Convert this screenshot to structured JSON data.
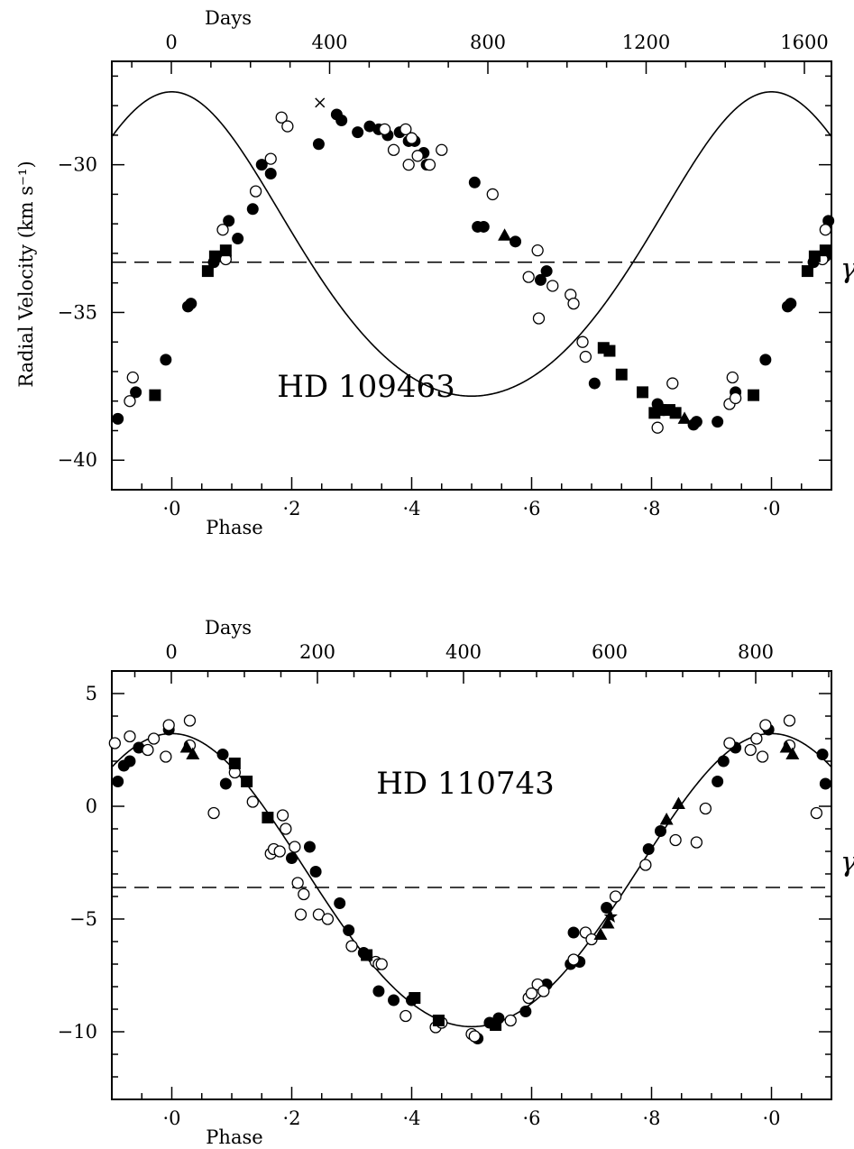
{
  "chart_data": [
    {
      "type": "scatter",
      "title": "HD 109463",
      "xlabel": "Phase",
      "x2label": "Days",
      "ylabel": "Radial Velocity (km s⁻¹)",
      "gamma_label": "γ",
      "xlim": [
        -0.1,
        1.1
      ],
      "ylim": [
        -41,
        -26.5
      ],
      "gamma": -33.3,
      "phase_ticks": [
        {
          "v": 0.0,
          "label": "·0"
        },
        {
          "v": 0.2,
          "label": "·2"
        },
        {
          "v": 0.4,
          "label": "·4"
        },
        {
          "v": 0.6,
          "label": "·6"
        },
        {
          "v": 0.8,
          "label": "·8"
        },
        {
          "v": 1.0,
          "label": "·0"
        }
      ],
      "y_ticks": [
        {
          "v": -30,
          "label": "−30"
        },
        {
          "v": -35,
          "label": "−35"
        },
        {
          "v": -40,
          "label": "−40"
        }
      ],
      "day_ticks": [
        {
          "v": 0,
          "label": "0"
        },
        {
          "v": 400,
          "label": "400"
        },
        {
          "v": 800,
          "label": "800"
        },
        {
          "v": 1200,
          "label": "1200"
        },
        {
          "v": 1600,
          "label": "1600"
        }
      ],
      "curve": {
        "gamma": -33.3,
        "K": 5.15,
        "e": 0.12,
        "omega_deg": 0,
        "T0": 0.0
      },
      "series": [
        {
          "marker": "filled-circle",
          "x": [
            -0.09,
            -0.06,
            -0.01,
            0.027,
            0.032,
            0.07,
            0.09,
            0.095,
            0.11,
            0.135,
            0.15,
            0.165,
            0.245,
            0.275,
            0.283,
            0.31,
            0.33,
            0.345,
            0.36,
            0.38,
            0.395,
            0.405,
            0.42,
            0.425,
            0.505,
            0.51,
            0.52,
            0.573,
            0.615,
            0.625,
            0.705,
            0.81,
            0.815,
            0.87,
            0.875,
            0.91,
            0.94,
            0.99,
            1.027,
            1.032,
            1.07,
            1.09,
            1.095
          ],
          "y": [
            -38.6,
            -37.7,
            -36.6,
            -34.8,
            -34.7,
            -33.3,
            -33.1,
            -31.9,
            -32.5,
            -31.5,
            -30.0,
            -30.3,
            -29.3,
            -28.3,
            -28.5,
            -28.9,
            -28.7,
            -28.8,
            -29.0,
            -28.9,
            -29.2,
            -29.2,
            -29.6,
            -30.0,
            -30.6,
            -32.1,
            -32.1,
            -32.6,
            -33.9,
            -33.6,
            -37.4,
            -38.1,
            -38.3,
            -38.8,
            -38.7,
            -38.7,
            -37.7,
            -36.6,
            -34.8,
            -34.7,
            -33.3,
            -33.1,
            -31.9
          ]
        },
        {
          "marker": "open-circle",
          "x": [
            -0.07,
            -0.065,
            0.085,
            0.09,
            0.14,
            0.165,
            0.183,
            0.193,
            0.355,
            0.37,
            0.39,
            0.395,
            0.4,
            0.41,
            0.43,
            0.45,
            0.535,
            0.595,
            0.61,
            0.612,
            0.635,
            0.665,
            0.67,
            0.685,
            0.69,
            0.81,
            0.82,
            0.835,
            0.93,
            0.935,
            0.94,
            1.085,
            1.09
          ],
          "y": [
            -38.0,
            -37.2,
            -32.2,
            -33.2,
            -30.9,
            -29.8,
            -28.4,
            -28.7,
            -28.8,
            -29.5,
            -28.8,
            -30.0,
            -29.1,
            -29.7,
            -30.0,
            -29.5,
            -31.0,
            -33.8,
            -32.9,
            -35.2,
            -34.1,
            -34.4,
            -34.7,
            -36.0,
            -36.5,
            -38.9,
            -38.3,
            -37.4,
            -38.1,
            -37.2,
            -37.9,
            -33.2,
            -32.2
          ]
        },
        {
          "marker": "filled-square",
          "x": [
            -0.028,
            0.06,
            0.072,
            0.09,
            0.72,
            0.73,
            0.75,
            0.785,
            0.805,
            0.815,
            0.83,
            0.84,
            0.97,
            1.06,
            1.072,
            1.09
          ],
          "y": [
            -37.8,
            -33.6,
            -33.1,
            -32.9,
            -36.2,
            -36.3,
            -37.1,
            -37.7,
            -38.4,
            -38.3,
            -38.3,
            -38.4,
            -37.8,
            -33.6,
            -33.1,
            -32.9
          ]
        },
        {
          "marker": "filled-triangle",
          "x": [
            0.555,
            0.855
          ],
          "y": [
            -32.4,
            -38.6
          ]
        },
        {
          "marker": "cross",
          "x": [
            0.247
          ],
          "y": [
            -27.9
          ]
        }
      ]
    },
    {
      "type": "scatter",
      "title": "HD 110743",
      "xlabel": "Phase",
      "x2label": "Days",
      "ylabel": "",
      "gamma_label": "γ",
      "xlim": [
        -0.1,
        1.1
      ],
      "ylim": [
        -13,
        6
      ],
      "gamma": -3.6,
      "phase_ticks": [
        {
          "v": 0.0,
          "label": "·0"
        },
        {
          "v": 0.2,
          "label": "·2"
        },
        {
          "v": 0.4,
          "label": "·4"
        },
        {
          "v": 0.6,
          "label": "·6"
        },
        {
          "v": 0.8,
          "label": "·8"
        },
        {
          "v": 1.0,
          "label": "·0"
        }
      ],
      "y_ticks": [
        {
          "v": 5,
          "label": "5"
        },
        {
          "v": 0,
          "label": "0"
        },
        {
          "v": -5,
          "label": "−5"
        },
        {
          "v": -10,
          "label": "−10"
        }
      ],
      "day_ticks": [
        {
          "v": 0,
          "label": "0"
        },
        {
          "v": 200,
          "label": "200"
        },
        {
          "v": 400,
          "label": "400"
        },
        {
          "v": 600,
          "label": "600"
        },
        {
          "v": 800,
          "label": "800"
        }
      ],
      "curve": {
        "gamma": -3.6,
        "K": 6.5,
        "e": 0.05,
        "omega_deg": 0,
        "T0": 0.0
      },
      "series": [
        {
          "marker": "filled-circle",
          "x": [
            -0.09,
            -0.08,
            -0.07,
            -0.055,
            -0.005,
            0.085,
            0.09,
            0.2,
            0.23,
            0.24,
            0.28,
            0.295,
            0.32,
            0.325,
            0.345,
            0.37,
            0.4,
            0.445,
            0.51,
            0.53,
            0.545,
            0.59,
            0.625,
            0.665,
            0.67,
            0.68,
            0.725,
            0.795,
            0.815,
            0.91,
            0.92,
            0.94,
            0.995,
            1.085,
            1.09
          ],
          "y": [
            1.1,
            1.8,
            2.0,
            2.6,
            3.4,
            2.3,
            1.0,
            -2.3,
            -1.8,
            -2.9,
            -4.3,
            -5.5,
            -6.5,
            -6.6,
            -8.2,
            -8.6,
            -8.6,
            -9.6,
            -10.3,
            -9.6,
            -9.4,
            -9.1,
            -7.9,
            -7.0,
            -5.6,
            -6.9,
            -4.5,
            -1.9,
            -1.1,
            1.1,
            2.0,
            2.6,
            3.4,
            2.3,
            1.0
          ]
        },
        {
          "marker": "open-circle",
          "x": [
            -0.095,
            -0.07,
            -0.04,
            -0.03,
            -0.01,
            -0.005,
            0.03,
            0.03,
            0.07,
            0.105,
            0.135,
            0.165,
            0.17,
            0.18,
            0.185,
            0.19,
            0.205,
            0.21,
            0.215,
            0.22,
            0.245,
            0.26,
            0.3,
            0.34,
            0.345,
            0.35,
            0.39,
            0.44,
            0.45,
            0.5,
            0.505,
            0.565,
            0.595,
            0.6,
            0.61,
            0.62,
            0.67,
            0.69,
            0.7,
            0.74,
            0.79,
            0.84,
            0.875,
            0.89,
            0.93,
            0.965,
            0.975,
            0.985,
            0.99,
            1.03,
            1.03,
            1.075
          ],
          "y": [
            2.8,
            3.1,
            2.5,
            3.0,
            2.2,
            3.6,
            3.8,
            2.7,
            -0.3,
            1.5,
            0.2,
            -2.1,
            -1.9,
            -2.0,
            -0.4,
            -1.0,
            -1.8,
            -3.4,
            -4.8,
            -3.9,
            -4.8,
            -5.0,
            -6.2,
            -6.9,
            -7.0,
            -7.0,
            -9.3,
            -9.8,
            -9.6,
            -10.1,
            -10.2,
            -9.5,
            -8.5,
            -8.3,
            -7.9,
            -8.2,
            -6.8,
            -5.6,
            -5.9,
            -4.0,
            -2.6,
            -1.5,
            -1.6,
            -0.1,
            2.8,
            2.5,
            3.0,
            2.2,
            3.6,
            3.8,
            2.7,
            -0.3
          ]
        },
        {
          "marker": "filled-square",
          "x": [
            0.105,
            0.125,
            0.16,
            0.325,
            0.405,
            0.445,
            0.54
          ],
          "y": [
            1.9,
            1.1,
            -0.5,
            -6.6,
            -8.5,
            -9.5,
            -9.7
          ]
        },
        {
          "marker": "filled-triangle",
          "x": [
            0.025,
            0.035,
            0.715,
            0.727,
            0.825,
            0.845,
            1.025,
            1.035
          ],
          "y": [
            2.6,
            2.3,
            -5.7,
            -5.2,
            -0.6,
            0.1,
            2.6,
            2.3
          ]
        },
        {
          "marker": "star",
          "x": [
            0.732
          ],
          "y": [
            -4.9
          ]
        }
      ]
    }
  ]
}
